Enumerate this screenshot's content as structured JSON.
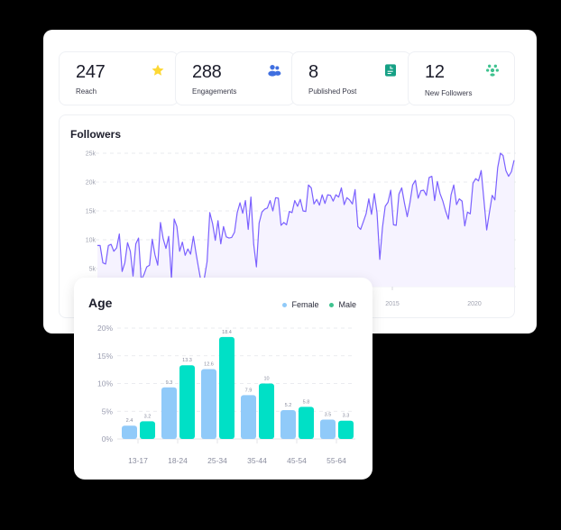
{
  "stats": [
    {
      "value": "247",
      "label": "Reach",
      "icon": "star-icon",
      "color": "#fdd835"
    },
    {
      "value": "288",
      "label": "Engagements",
      "icon": "users-icon",
      "color": "#3f6fe0"
    },
    {
      "value": "8",
      "label": "Published Post",
      "icon": "document-icon",
      "color": "#16a085"
    },
    {
      "value": "12",
      "label": "New Followers",
      "icon": "follower-group-icon",
      "color": "#3ec28f"
    }
  ],
  "followers": {
    "title": "Followers",
    "y_ticks": [
      "25k",
      "20k",
      "15k",
      "10k",
      "5k"
    ],
    "x_ticks": [
      "2015",
      "2020"
    ],
    "line_color": "#7b61ff"
  },
  "age": {
    "title": "Age",
    "legend": [
      {
        "label": "Female",
        "color": "#90caf9"
      },
      {
        "label": "Male",
        "color": "#00e0c6"
      }
    ],
    "y_ticks": [
      "20%",
      "15%",
      "10%",
      "5%",
      "0%"
    ]
  },
  "chart_data": [
    {
      "type": "line",
      "title": "Followers",
      "xlabel": "",
      "ylabel": "",
      "ylim": [
        0,
        25000
      ],
      "yticks": [
        "5k",
        "10k",
        "15k",
        "20k",
        "25k"
      ],
      "xticks": [
        "2015",
        "2020"
      ],
      "grid": true,
      "series": [
        {
          "name": "Followers",
          "values": [
            9000,
            9000,
            6000,
            5800,
            9000,
            9200,
            8000,
            8600,
            11000,
            4500,
            6000,
            9500,
            8000,
            3700,
            9300,
            10300,
            3000,
            4000,
            5300,
            5600,
            10100,
            7400,
            5600,
            13000,
            10200,
            8500,
            10600,
            3300,
            13600,
            12300,
            8000,
            9600,
            7300,
            8400,
            7500,
            10600,
            7600,
            4800,
            2200,
            3300,
            6200,
            14700,
            12800,
            9900,
            13300,
            9300,
            12300,
            10500,
            10300,
            10400,
            11300,
            14700,
            16400,
            14600,
            16800,
            11800,
            17400,
            9200,
            5300,
            12900,
            14800,
            15300,
            15500,
            16800,
            15000,
            17300,
            17200,
            12500,
            13000,
            12600,
            14900,
            14700,
            16800,
            15800,
            17000,
            15000,
            14900,
            19500,
            19000,
            16200,
            17000,
            16000,
            17800,
            16300,
            17800,
            17700,
            16700,
            17800,
            17400,
            19000,
            16100,
            17300,
            16900,
            16200,
            18700,
            12300,
            11800,
            13100,
            14500,
            17100,
            14400,
            18000,
            14700,
            6600,
            12200,
            15800,
            16500,
            18600,
            12600,
            12500,
            17900,
            19000,
            16400,
            14000,
            16400,
            19500,
            20300,
            17200,
            18500,
            18600,
            17700,
            20800,
            21000,
            16800,
            20100,
            18000,
            16700,
            15000,
            13600,
            17800,
            19500,
            16100,
            17100,
            16700,
            12400,
            14800,
            14500,
            19800,
            20600,
            20200,
            22000,
            16800,
            11700,
            14700,
            17700,
            16900,
            22500,
            25000,
            24600,
            22000,
            21000,
            21800,
            23800
          ]
        }
      ]
    },
    {
      "type": "bar",
      "title": "Age",
      "categories": [
        "13-17",
        "18-24",
        "25-34",
        "35-44",
        "45-54",
        "55-64"
      ],
      "series": [
        {
          "name": "Female",
          "values": [
            2.4,
            9.3,
            12.6,
            7.9,
            5.2,
            3.5
          ]
        },
        {
          "name": "Male",
          "values": [
            3.2,
            13.3,
            18.4,
            10,
            5.8,
            3.3
          ]
        }
      ],
      "xlabel": "",
      "ylabel": "",
      "ylim": [
        0,
        20
      ],
      "yticks": [
        "0%",
        "5%",
        "10%",
        "15%",
        "20%"
      ],
      "legend_position": "top-right",
      "grid": true
    }
  ]
}
